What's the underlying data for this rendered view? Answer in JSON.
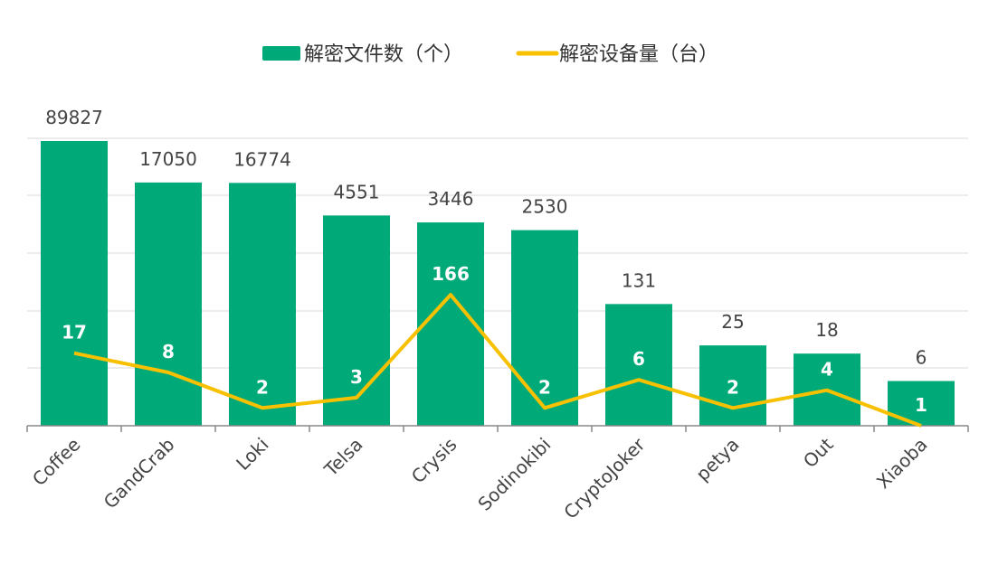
{
  "chart_data": {
    "type": "bar",
    "categories": [
      "Coffee",
      "GandCrab",
      "Loki",
      "Telsa",
      "Crysis",
      "Sodinokibi",
      "CryptoJoker",
      "petya",
      "Out",
      "Xiaoba"
    ],
    "series": [
      {
        "name": "解密文件数（个）",
        "type": "bar",
        "values": [
          89827,
          17050,
          16774,
          4551,
          3446,
          2530,
          131,
          25,
          18,
          6
        ],
        "color": "#00aa78",
        "value_scale": "log",
        "value_range": [
          1,
          100000
        ]
      },
      {
        "name": "解密设备量（台）",
        "type": "line",
        "values": [
          17,
          8,
          2,
          3,
          166,
          2,
          6,
          2,
          4,
          1
        ],
        "color": "#f7c000",
        "value_scale": "log",
        "value_range": [
          1,
          3000
        ]
      }
    ],
    "legend_position": "top-center",
    "grid": true,
    "y_axis_labels_shown": false
  }
}
